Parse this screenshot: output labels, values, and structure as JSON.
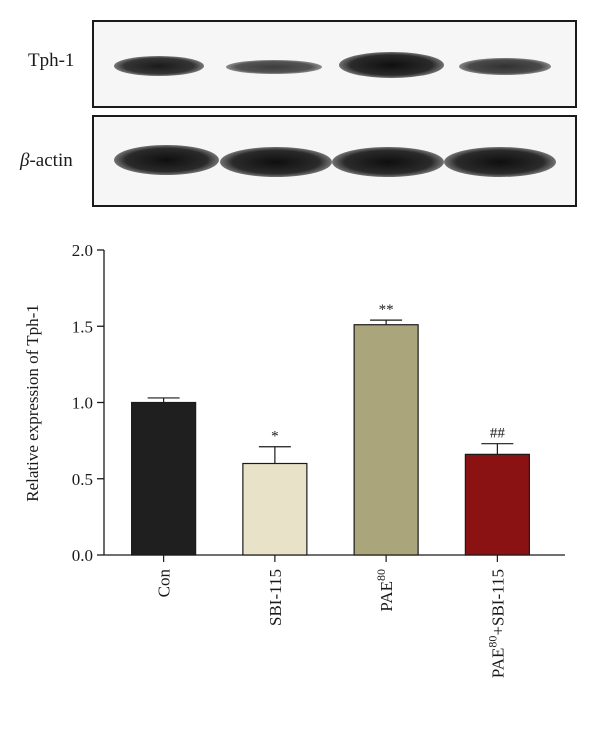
{
  "blots": [
    {
      "label": "Tph-1",
      "label_prefix": "",
      "label_suffix": "Tph-1",
      "band_darkness": [
        0.95,
        0.8,
        1.0,
        0.85
      ]
    },
    {
      "label": "β-actin",
      "label_prefix": "β",
      "label_suffix": "-actin",
      "band_darkness": [
        1.0,
        1.0,
        1.0,
        1.0
      ]
    }
  ],
  "chart_data": {
    "type": "bar",
    "ylabel": "Relative expression of Tph-1",
    "xlabel": "",
    "ylim": [
      0,
      2.0
    ],
    "yticks": [
      "0.0",
      "0.5",
      "1.0",
      "1.5",
      "2.0"
    ],
    "categories": [
      {
        "base": "Con",
        "sup": "",
        "after": ""
      },
      {
        "base": "SBI-115",
        "sup": "",
        "after": ""
      },
      {
        "base": "PAE",
        "sup": "80",
        "after": ""
      },
      {
        "base": "PAE",
        "sup": "80",
        "after": "+SBI-115"
      }
    ],
    "values": [
      1.0,
      0.6,
      1.51,
      0.66
    ],
    "errors": [
      0.03,
      0.11,
      0.03,
      0.07
    ],
    "annotations": [
      "",
      "*",
      "**",
      "##"
    ],
    "colors": [
      "#1f1f1f",
      "#e8e2c8",
      "#aaa57a",
      "#8b1212"
    ],
    "grid": false
  }
}
